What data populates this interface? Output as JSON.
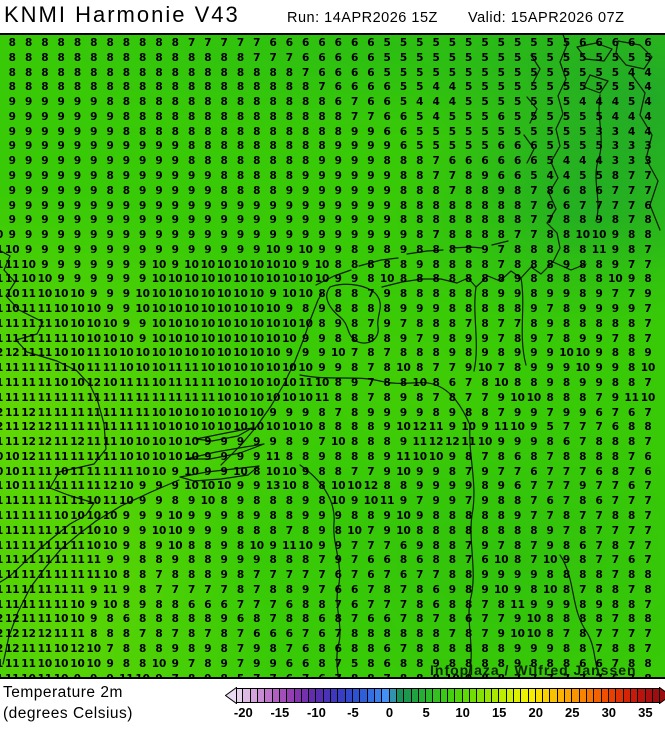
{
  "header": {
    "title": "KNMI Harmonie V43",
    "run_label": "Run: 14APR2026 15Z",
    "valid_label": "Valid: 15APR2026 07Z"
  },
  "map": {
    "attribution": "Infoplaza / Wilfred Janssen",
    "grid": {
      "rows": [
        "8 8 8 8 8 8 8 8 8 8 8 8 7 7 7 7 7 6 6 6 6 6 6 6 5 5 5 5 5 5 5 5 5 5 5 5 6 6 6 6 6",
        "8 8 8 8 8 8 8 8 8 8 8 8 8 8 8 8 7 7 7 6 6 6 6 6 5 5 5 5 5 5 5 5 5 5 5 5 5 5 5 5 5",
        "8 8 8 8 8 8 8 8 8 8 8 8 8 8 8 8 8 8 8 7 6 6 6 6 5 5 5 5 5 5 5 5 5 5 5 5 5 5 5 4 4",
        "8 8 8 8 8 8 8 8 8 8 8 8 8 8 8 8 8 8 8 8 7 6 6 6 6 5 5 4 4 5 5 5 5 5 5 5 5 5 5 5 4",
        "9 9 9 9 9 9 9 8 8 8 8 8 8 8 8 8 8 8 8 8 8 6 7 6 6 5 4 4 4 5 5 5 5 5 5 5 4 4 4 5 4",
        "9 9 9 9 9 9 9 9 8 8 8 8 8 8 8 8 8 8 8 8 8 8 7 7 6 6 5 4 5 5 5 6 5 5 5 5 5 5 4 4 4",
        "9 9 9 9 9 9 9 9 8 8 8 8 8 8 8 8 8 8 8 8 8 8 9 9 6 6 5 5 5 5 5 5 5 5 5 5 5 3 3 4 4",
        "9 9 9 9 9 9 9 9 9 9 9 9 8 8 8 8 8 8 8 8 8 9 9 9 9 6 5 5 5 5 5 6 6 6 5 5 5 5 3 3 3",
        "9 9 9 9 9 9 9 9 9 9 9 9 8 8 8 8 8 8 8 8 9 9 9 9 8 8 8 7 6 6 6 6 6 6 5 4 4 4 3 3 3",
        "9 9 9 9 9 9 9 8 9 9 9 9 9 9 8 8 8 8 8 9 9 9 9 9 9 8 8 7 7 8 9 6 6 5 4 4 5 5 8 7 7",
        "9 9 9 9 9 9 9 8 8 9 9 9 9 9 8 8 8 8 9 9 9 9 9 9 9 8 8 8 7 8 8 9 8 7 8 6 8 6 7 7 7",
        "9 9 9 9 9 9 9 9 9 9 9 9 9 9 9 9 9 9 9 9 9 9 9 9 9 8 8 8 8 8 8 8 8 7 6 6 7 7 7 7 6",
        "9 9 9 9 9 9 9 9 9 9 9 9 9 9 9 9 9 9 9 9 9 9 9 9 9 8 8 8 8 8 8 8 8 7 7 8 8 9 8 7 8",
        "10 9 9 9 9 9 9 9 9 9 9 9 9 9 9 9 9 9 9 9 9 9 9 9 9 9 8 7 8 8 8 8 7 7 8 8 10 10 9 8 8",
        "11 10 9 9 9 9 9 9 9 9 9 9 9 9 9 9 9 10 9 10 9 9 8 9 8 9 8 8 8 8 9 7 8 8 8 8 8 11 9 8 7",
        "11 11 10 9 9 9 9 9 9 9 10 9 10 10 10 10 10 10 10 9 10 8 8 8 8 8 9 8 8 8 8 7 8 8 8 9 8 8 9 7 7",
        "11 11 10 10 9 9 9 9 9 9 10 10 10 10 10 10 10 10 10 10 10 9 9 8 10 8 8 8 8 8 8 8 9 8 8 8 8 8 10 9 8",
        "11 10 11 10 10 10 9 9 9 10 10 10 10 10 10 10 10 9 10 10 8 8 8 7 9 8 8 8 8 8 8 9 9 8 9 9 8 9 7 7 9",
        "11 10 11 11 10 10 10 9 9 10 10 10 10 10 10 10 10 10 9 8 9 8 8 8 8 9 9 9 8 8 8 8 8 9 7 8 9 9 9 9 7",
        "11 11 11 11 10 10 10 10 9 9 10 10 10 10 10 10 10 10 10 10 8 9 8 7 9 7 8 8 8 7 8 7 7 8 9 8 8 8 8 8 7",
        "11 11 11 11 11 10 10 10 10 9 10 10 10 10 10 10 10 10 10 9 9 8 8 8 8 9 7 9 8 9 9 7 8 9 7 8 9 9 7 8 7",
        "12 12 11 11 10 10 11 10 10 10 10 10 10 10 10 10 10 10 9 9 9 10 7 8 7 8 8 8 9 8 9 8 9 9 9 10 10 9 8 8 9",
        "11 11 11 11 11 10 11 11 10 10 10 11 11 10 10 10 10 10 10 10 9 9 8 7 8 10 8 7 7 9 10 7 8 9 9 9 10 9 9 8 10",
        "11 11 11 11 10 10 12 10 11 11 10 11 11 11 10 10 10 10 10 11 10 8 9 7 8 8 10 8 6 7 8 10 8 8 9 8 9 9 8 8 7",
        "11 11 11 11 11 11 11 11 11 11 11 11 11 11 10 10 10 10 10 10 11 8 8 7 8 9 8 7 8 7 7 9 10 10 8 8 8 7 9 11 10",
        "12 11 12 11 11 11 11 11 11 11 10 10 10 10 10 10 10 9 9 9 8 7 8 9 9 9 9 8 9 8 8 7 9 9 7 9 9 6 7 6 7",
        "12 11 12 12 11 11 11 11 11 11 10 10 10 10 10 10 10 10 10 10 8 8 8 8 9 10 12 11 9 10 9 11 10 9 5 7 7 7 6 8 8",
        "11 11 12 12 11 12 11 11 10 10 10 10 10 9 9 9 9 9 8 9 7 10 8 8 8 9 11 12 12 11 10 9 9 9 8 6 7 8 8 8 7",
        "10 10 12 11 11 11 11 11 10 10 10 10 10 9 9 9 9 11 8 8 9 8 8 8 9 11 10 10 9 8 7 8 6 8 7 8 8 8 8 7 6",
        "10 10 11 11 10 11 11 11 11 10 10 9 10 9 9 10 8 10 10 9 8 8 7 7 9 10 9 9 8 7 9 7 7 6 7 7 7 6 8 7 6",
        "11 10 11 11 11 11 11 12 10 9 9 9 10 10 10 9 9 13 10 8 8 10 10 12 8 8 9 9 9 9 8 9 6 7 7 7 9 7 7 6 7",
        "11 11 11 11 11 11 10 11 10 9 9 8 9 10 8 9 8 8 8 9 8 10 9 10 11 9 7 9 9 7 9 8 8 7 6 7 8 6 7 7 7",
        "11 11 11 11 10 10 10 10 9 9 9 10 9 9 9 8 9 8 8 9 9 9 8 8 9 10 9 8 8 8 8 8 9 7 7 8 7 7 8 8 7",
        "11 11 11 11 11 11 10 10 9 9 10 10 9 9 9 8 8 8 7 8 9 8 10 7 9 10 8 8 8 8 8 8 8 8 9 7 8 7 7 7 7",
        "11 11 11 11 11 11 10 10 9 8 9 10 8 8 9 8 10 9 11 10 9 9 7 7 7 6 9 8 8 7 9 7 8 7 9 8 6 7 8 7 7",
        "11 11 11 11 11 11 11 9 9 8 8 9 8 8 9 9 9 8 8 8 7 9 7 6 6 8 6 8 8 7 6 10 8 7 10 9 8 7 7 6 7",
        "11 11 11 11 11 11 11 10 8 8 7 8 8 8 9 8 7 7 7 7 7 6 7 6 7 6 7 7 8 8 9 9 9 9 8 8 8 8 7 8 8",
        "11 11 11 11 11 11 9 11 9 8 7 7 7 7 7 8 7 8 8 9 7 6 6 7 8 7 8 6 9 8 9 10 9 8 10 8 7 8 8 7 8",
        "11 11 11 11 11 10 9 10 8 9 8 8 6 6 6 7 7 7 6 8 8 7 6 7 7 7 8 6 8 8 7 8 11 9 9 9 8 9 8 8 7",
        "12 12 11 11 10 10 9 8 6 8 8 8 8 8 9 6 8 7 8 8 6 8 7 6 6 7 8 7 8 6 7 7 9 10 8 8 8 8 7 8 8",
        "12 12 12 12 11 11 8 8 8 7 8 7 8 7 8 7 6 6 6 7 6 7 8 8 8 8 8 8 7 8 7 9 10 10 8 7 8 7 7 7 7",
        "12 12 11 11 10 12 10 7 8 8 8 9 8 9 8 7 9 8 7 6 8 6 8 8 6 7 8 8 8 8 8 8 9 9 9 8 8 7 8 8 7",
        "11 11 11 10 10 10 10 9 8 8 10 9 7 8 9 7 9 9 6 6 8 7 5 8 6 8 8 9 8 8 8 8 9 8 8 8 6 6 7 8 8",
        "11 11 10 11 10 9 9 9 11 10 9 7 8 9 8 5 7 7 6 7 6 7 8 8 7 8 8 8 10 9 8 8 7 7 7 7 7 7 6 7 8"
      ]
    }
  },
  "legend": {
    "title_line1": "Temperature 2m",
    "title_line2": "(degrees Celsius)",
    "ticks": [
      -20,
      -15,
      -10,
      -5,
      0,
      5,
      10,
      15,
      20,
      25,
      30,
      35
    ],
    "range": {
      "min": -21,
      "max": 37
    },
    "color_stops": [
      {
        "v": -21,
        "c": "#eadcf0"
      },
      {
        "v": -19,
        "c": "#d9aee0"
      },
      {
        "v": -16,
        "c": "#b868c6"
      },
      {
        "v": -13,
        "c": "#8c35ae"
      },
      {
        "v": -10,
        "c": "#5b2aac"
      },
      {
        "v": -7,
        "c": "#3939c0"
      },
      {
        "v": -4,
        "c": "#2b57d4"
      },
      {
        "v": -1,
        "c": "#3e85f0"
      },
      {
        "v": 0,
        "c": "#4a9cf8"
      },
      {
        "v": 1,
        "c": "#178a60"
      },
      {
        "v": 3,
        "c": "#1d9c46"
      },
      {
        "v": 5,
        "c": "#27b42e"
      },
      {
        "v": 8,
        "c": "#3dcd12"
      },
      {
        "v": 10,
        "c": "#55d806"
      },
      {
        "v": 13,
        "c": "#8ce400"
      },
      {
        "v": 16,
        "c": "#c6ee00"
      },
      {
        "v": 19,
        "c": "#f2f400"
      },
      {
        "v": 21,
        "c": "#f8d800"
      },
      {
        "v": 24,
        "c": "#f9ac00"
      },
      {
        "v": 27,
        "c": "#f97c00"
      },
      {
        "v": 30,
        "c": "#ee4600"
      },
      {
        "v": 33,
        "c": "#cf1d06"
      },
      {
        "v": 35,
        "c": "#b11010"
      },
      {
        "v": 37,
        "c": "#990d0d"
      }
    ]
  }
}
